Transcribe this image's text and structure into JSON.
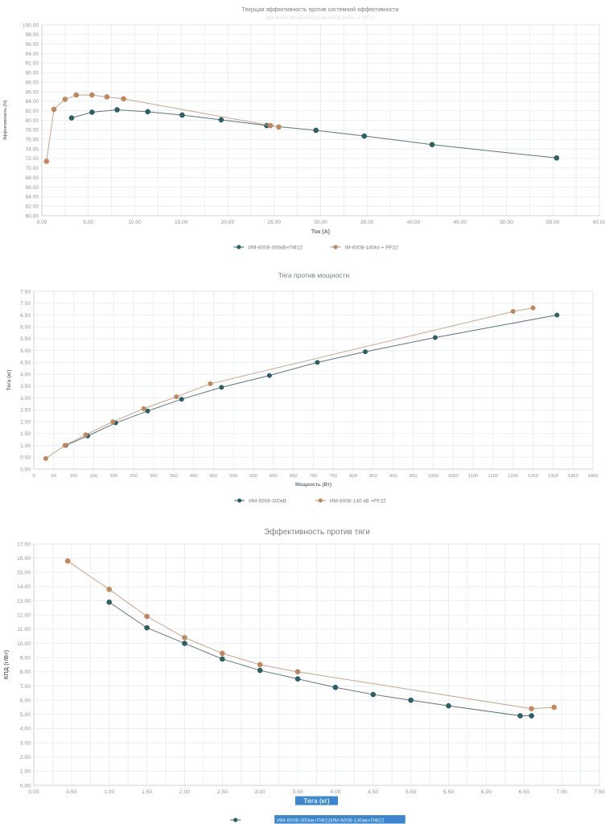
{
  "chart_data": [
    {
      "type": "line",
      "title": "Текущая эффективность против системной эффективности",
      "ghost_subtitle": "ИМ-6008-300кВ+ПФ22  IM-6008-140kv + PF22",
      "xlabel": "Ток (A)",
      "ylabel": "Эффективность (%)",
      "xlim": [
        0,
        60
      ],
      "ylim": [
        60,
        100
      ],
      "xgrid": 2.5,
      "ygrid": 2,
      "grid": true,
      "legend_position": "bottom",
      "xticks": [
        "0.00",
        "5.00",
        "10.00",
        "15.00",
        "20.00",
        "25.00",
        "30.00",
        "35.00",
        "40.00",
        "45.00",
        "50.00",
        "55.00",
        "60.00"
      ],
      "yticks": [
        "100,00",
        "98.00",
        "96.00",
        "94.00",
        "92.00",
        "90.00",
        "88.00",
        "86.00",
        "84.00",
        "82.00",
        "80.00",
        "78.00",
        "76.00",
        "74.00",
        "72.00",
        "70.00",
        "68.00",
        "66.00",
        "64.00",
        "62.00",
        "60.00"
      ],
      "series": [
        {
          "name": "ИМ-6008-300кВ+ПФ22",
          "color": "#2d5f63",
          "line_color": "#5f7577",
          "points": [
            [
              3.2,
              80.5
            ],
            [
              5.4,
              81.7
            ],
            [
              8.1,
              82.2
            ],
            [
              11.4,
              81.8
            ],
            [
              15.1,
              81.1
            ],
            [
              19.3,
              80.1
            ],
            [
              24.2,
              78.9
            ],
            [
              29.5,
              77.9
            ],
            [
              34.7,
              76.7
            ],
            [
              42.0,
              74.9
            ],
            [
              55.4,
              72.1
            ]
          ]
        },
        {
          "name": "IM-6008-140kv + PF22",
          "color": "#c0885f",
          "line_color": "#c7a58a",
          "points": [
            [
              0.5,
              71.4
            ],
            [
              1.3,
              82.3
            ],
            [
              2.5,
              84.4
            ],
            [
              3.7,
              85.3
            ],
            [
              5.4,
              85.3
            ],
            [
              7.0,
              84.9
            ],
            [
              8.8,
              84.5
            ],
            [
              24.6,
              78.9
            ],
            [
              25.5,
              78.6
            ]
          ]
        }
      ]
    },
    {
      "type": "line",
      "title": "Тяга против мощности",
      "xlabel": "Мощность (Вт)",
      "ylabel": "Тяга (кг)",
      "xlim": [
        0,
        1400
      ],
      "ylim": [
        0,
        7.5
      ],
      "xgrid": 50,
      "ygrid": 0.5,
      "grid": true,
      "legend_position": "bottom",
      "xticks": [
        "0",
        "50",
        "100",
        "150",
        "200",
        "250",
        "300",
        "350",
        "400",
        "450",
        "500",
        "550",
        "600",
        "650",
        "700",
        "750",
        "800",
        "850",
        "900",
        "950",
        "1000",
        "1050",
        "1100",
        "1150",
        "1200",
        "1250",
        "1300",
        "1350",
        "1400"
      ],
      "yticks": [
        "7.50",
        "7.00",
        "6.50",
        "6.00",
        "5.50",
        "5.00",
        "4.50",
        "4.00",
        "3.50",
        "3.00",
        "2.50",
        "2.00",
        "1.50",
        "1.00",
        "0.50",
        "0.00"
      ],
      "series": [
        {
          "name": "ИМ-6008-300кВ",
          "color": "#2d5f63",
          "line_color": "#5f7577",
          "points": [
            [
              80,
              1.0
            ],
            [
              135,
              1.4
            ],
            [
              205,
              1.95
            ],
            [
              285,
              2.45
            ],
            [
              370,
              2.95
            ],
            [
              470,
              3.45
            ],
            [
              590,
              3.95
            ],
            [
              710,
              4.5
            ],
            [
              830,
              4.95
            ],
            [
              1005,
              5.55
            ],
            [
              1310,
              6.5
            ]
          ]
        },
        {
          "name": "ИМ-6008-140 кВ +PF22",
          "color": "#c0885f",
          "line_color": "#c7a58a",
          "points": [
            [
              30,
              0.45
            ],
            [
              78,
              1.0
            ],
            [
              130,
              1.45
            ],
            [
              198,
              2.0
            ],
            [
              275,
              2.55
            ],
            [
              357,
              3.05
            ],
            [
              442,
              3.6
            ],
            [
              1200,
              6.65
            ],
            [
              1250,
              6.8
            ]
          ]
        }
      ]
    },
    {
      "type": "line",
      "title": "Эффективность против тяги",
      "xlabel": "Тяга (кг)",
      "xlabel_highlighted": true,
      "ylabel": "КПД (г/Вт)",
      "xlim": [
        0,
        7.5
      ],
      "ylim": [
        0,
        17
      ],
      "xgrid": 0.25,
      "ygrid": 1,
      "grid": true,
      "legend_position": "bottom",
      "highlight_color": "#3c86cf",
      "highlight_text_color": "#d8f1ef",
      "xticks": [
        "0.00",
        "0.50",
        "1.00",
        "1.50",
        "2.00",
        "2.50",
        "3.00",
        "3.50",
        "4.00",
        "4.50",
        "5.00",
        "5.50",
        "6.00",
        "6.50",
        "7.00",
        "7.50"
      ],
      "yticks": [
        "17.00",
        "16.00",
        "15.00",
        "14.00",
        "13.00",
        "12.00",
        "11.00",
        "10.00",
        "9.00",
        "8.00",
        "7.00",
        "6.00",
        "5.00",
        "4.00",
        "3.00",
        "2.00",
        "1.00",
        "0.00"
      ],
      "series": [
        {
          "name": "ИМ-6008-300кв+ПФ22",
          "color": "#2d5f63",
          "line_color": "#5f7577",
          "points": [
            [
              1.0,
              12.9
            ],
            [
              1.5,
              11.1
            ],
            [
              2.0,
              10.0
            ],
            [
              2.5,
              8.9
            ],
            [
              3.0,
              8.1
            ],
            [
              3.5,
              7.5
            ],
            [
              4.0,
              6.9
            ],
            [
              4.5,
              6.4
            ],
            [
              5.0,
              6.0
            ],
            [
              5.5,
              5.6
            ],
            [
              6.45,
              4.9
            ],
            [
              6.6,
              4.9
            ]
          ]
        },
        {
          "name": "ИМ-6008-140кв+ПФ22",
          "color": "#c0885f",
          "line_color": "#c7a58a",
          "points": [
            [
              0.45,
              15.8
            ],
            [
              1.0,
              13.8
            ],
            [
              1.5,
              11.9
            ],
            [
              2.0,
              10.4
            ],
            [
              2.5,
              9.3
            ],
            [
              3.0,
              8.5
            ],
            [
              3.5,
              8.0
            ],
            [
              6.6,
              5.4
            ],
            [
              6.9,
              5.5
            ]
          ]
        }
      ],
      "legend_combined": {
        "marker_color": "#2d5f63",
        "labels": [
          "ИМ-6008-300кв+ПФ22",
          "ИМ-6008-140кв+ПФ22"
        ]
      }
    }
  ]
}
